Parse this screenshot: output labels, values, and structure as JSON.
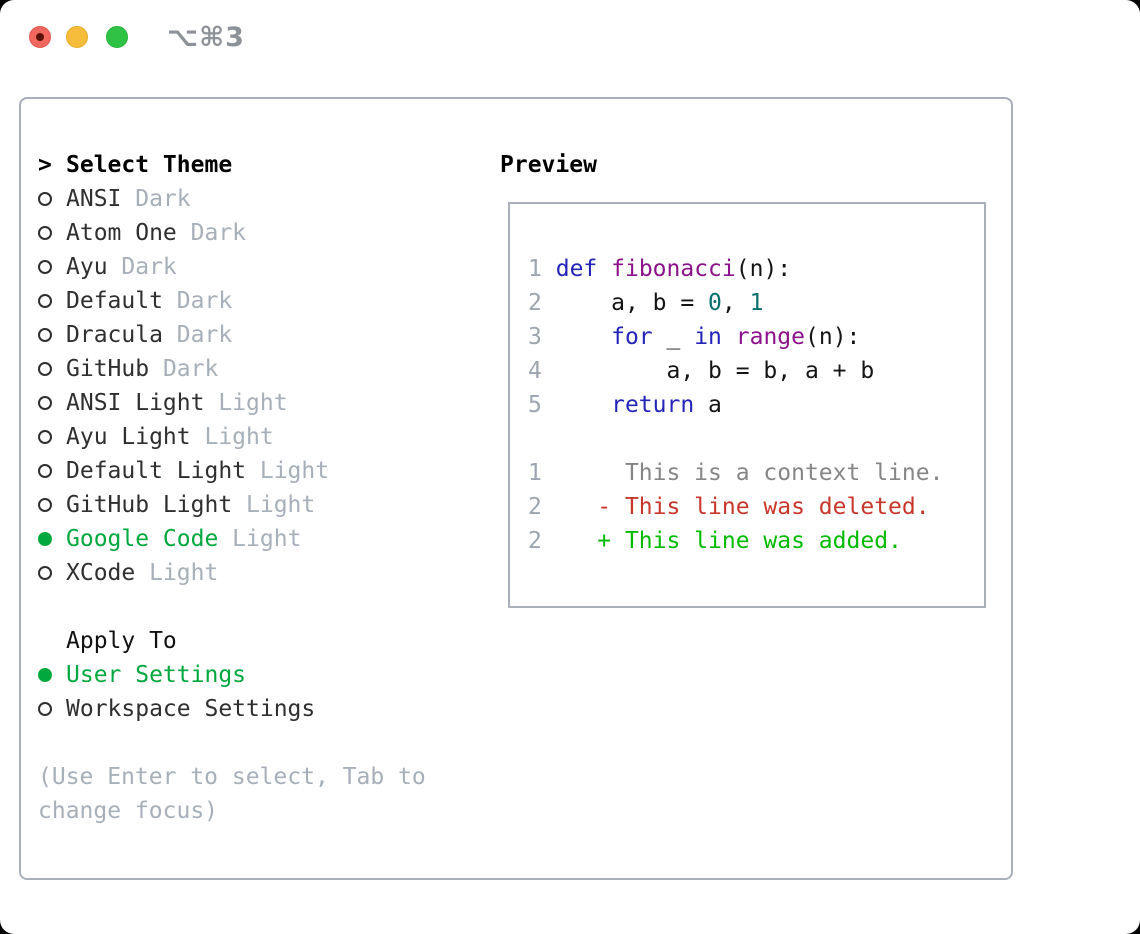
{
  "window": {
    "title": "⌥⌘3",
    "traffic_lights": [
      "close",
      "minimize",
      "zoom"
    ]
  },
  "theme_panel": {
    "header": {
      "prompt": ">",
      "label": "Select Theme"
    },
    "themes": [
      {
        "name": "ANSI",
        "variant": "Dark",
        "selected": false
      },
      {
        "name": "Atom One",
        "variant": "Dark",
        "selected": false
      },
      {
        "name": "Ayu",
        "variant": "Dark",
        "selected": false
      },
      {
        "name": "Default",
        "variant": "Dark",
        "selected": false
      },
      {
        "name": "Dracula",
        "variant": "Dark",
        "selected": false
      },
      {
        "name": "GitHub",
        "variant": "Dark",
        "selected": false
      },
      {
        "name": "ANSI Light",
        "variant": "Light",
        "selected": false
      },
      {
        "name": "Ayu Light",
        "variant": "Light",
        "selected": false
      },
      {
        "name": "Default Light",
        "variant": "Light",
        "selected": false
      },
      {
        "name": "GitHub Light",
        "variant": "Light",
        "selected": false
      },
      {
        "name": "Google Code",
        "variant": "Light",
        "selected": true
      },
      {
        "name": "XCode",
        "variant": "Light",
        "selected": false
      }
    ],
    "apply_to": {
      "label": "Apply To",
      "options": [
        {
          "name": "User Settings",
          "selected": true
        },
        {
          "name": "Workspace Settings",
          "selected": false
        }
      ]
    },
    "help_lines": [
      "(Use Enter to select, Tab to",
      "change focus)"
    ]
  },
  "preview": {
    "label": "Preview",
    "code_lines": [
      {
        "num": "1",
        "tokens": [
          {
            "t": "def",
            "c": "kw"
          },
          {
            "t": " ",
            "c": "pl"
          },
          {
            "t": "fibonacci",
            "c": "fn"
          },
          {
            "t": "(n):",
            "c": "pl"
          }
        ]
      },
      {
        "num": "2",
        "tokens": [
          {
            "t": "    a, b = ",
            "c": "pl"
          },
          {
            "t": "0",
            "c": "num"
          },
          {
            "t": ", ",
            "c": "pl"
          },
          {
            "t": "1",
            "c": "num"
          }
        ]
      },
      {
        "num": "3",
        "tokens": [
          {
            "t": "    ",
            "c": "pl"
          },
          {
            "t": "for",
            "c": "kw"
          },
          {
            "t": " _ ",
            "c": "pl"
          },
          {
            "t": "in",
            "c": "kw"
          },
          {
            "t": " ",
            "c": "pl"
          },
          {
            "t": "range",
            "c": "fn"
          },
          {
            "t": "(n):",
            "c": "pl"
          }
        ]
      },
      {
        "num": "4",
        "tokens": [
          {
            "t": "        a, b = b, a + b",
            "c": "pl"
          }
        ]
      },
      {
        "num": "5",
        "tokens": [
          {
            "t": "    ",
            "c": "pl"
          },
          {
            "t": "return",
            "c": "kw"
          },
          {
            "t": " a",
            "c": "pl"
          }
        ]
      }
    ],
    "diff_lines": [
      {
        "num": "1",
        "marker": " ",
        "text": "This is a context line.",
        "kind": "context"
      },
      {
        "num": "2",
        "marker": "-",
        "text": "This line was deleted.",
        "kind": "deleted"
      },
      {
        "num": "2",
        "marker": "+",
        "text": "This line was added.",
        "kind": "added"
      }
    ]
  },
  "colors": {
    "selection_green": "#00a83e",
    "added_green": "#00bb00",
    "deleted_red": "#c8372b",
    "keyword_blue": "#2424b8",
    "function_purple": "#8b128b",
    "number_teal": "#086e6e",
    "muted_gray": "#a7afb9",
    "line_number_gray": "#9ca5b0",
    "context_gray": "#868686",
    "panel_border": "#a9b0ba"
  }
}
